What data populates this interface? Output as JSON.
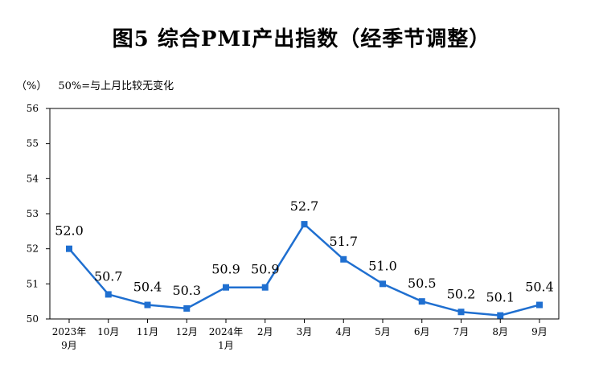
{
  "title": "图5  综合PMI产出指数（经季节调整）",
  "note": {
    "unit": "（%）",
    "text": "50%=与上月比较无变化"
  },
  "chart_data": {
    "type": "line",
    "categories": [
      [
        "2023年",
        "9月"
      ],
      [
        "10月"
      ],
      [
        "11月"
      ],
      [
        "12月"
      ],
      [
        "2024年",
        "1月"
      ],
      [
        "2月"
      ],
      [
        "3月"
      ],
      [
        "4月"
      ],
      [
        "5月"
      ],
      [
        "6月"
      ],
      [
        "7月"
      ],
      [
        "8月"
      ],
      [
        "9月"
      ]
    ],
    "series": [
      {
        "values": [
          52.0,
          50.7,
          50.4,
          50.3,
          50.9,
          50.9,
          52.7,
          51.7,
          51.0,
          50.5,
          50.2,
          50.1,
          50.4
        ]
      }
    ],
    "data_labels": [
      "52.0",
      "50.7",
      "50.4",
      "50.3",
      "50.9",
      "50.9",
      "52.7",
      "51.7",
      "51.0",
      "50.5",
      "50.2",
      "50.1",
      "50.4"
    ],
    "ylim": [
      50,
      56
    ],
    "yticks": [
      50,
      51,
      52,
      53,
      54,
      55,
      56
    ],
    "grid": false,
    "colors": {
      "line": "#1f6fd0",
      "marker": "#1f6fd0",
      "axis": "#000000"
    }
  }
}
